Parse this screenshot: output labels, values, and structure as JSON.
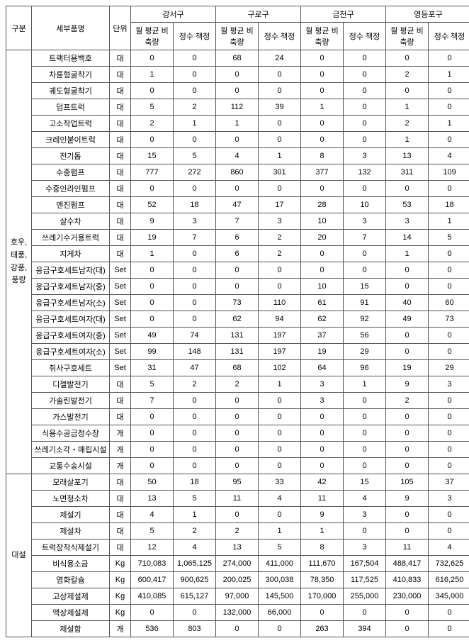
{
  "headers": {
    "category": "구분",
    "item": "세부품명",
    "unit": "단위",
    "districts": [
      "강서구",
      "구로구",
      "금천구",
      "영등포구"
    ],
    "sub": {
      "avg": "월 평균\n비축량",
      "book": "정수\n책정"
    }
  },
  "categories": [
    {
      "label": "호우,\n태풍,\n강풍,\n풍랑",
      "rows": [
        {
          "name": "트랙터용백호",
          "unit": "대",
          "v": [
            "0",
            "0",
            "68",
            "24",
            "0",
            "0",
            "0",
            "0"
          ]
        },
        {
          "name": "차륜형굴착기",
          "unit": "대",
          "v": [
            "1",
            "0",
            "0",
            "0",
            "0",
            "0",
            "2",
            "1"
          ]
        },
        {
          "name": "궤도형굴착기",
          "unit": "대",
          "v": [
            "0",
            "0",
            "0",
            "0",
            "0",
            "0",
            "0",
            "0"
          ]
        },
        {
          "name": "덤프트럭",
          "unit": "대",
          "v": [
            "5",
            "2",
            "112",
            "39",
            "1",
            "0",
            "1",
            "0"
          ]
        },
        {
          "name": "고소작업트럭",
          "unit": "대",
          "v": [
            "2",
            "1",
            "1",
            "0",
            "0",
            "0",
            "2",
            "1"
          ]
        },
        {
          "name": "크레인붙이트럭",
          "unit": "대",
          "v": [
            "0",
            "0",
            "0",
            "0",
            "0",
            "0",
            "1",
            "0"
          ]
        },
        {
          "name": "전기톱",
          "unit": "대",
          "v": [
            "15",
            "5",
            "4",
            "1",
            "8",
            "3",
            "13",
            "4"
          ]
        },
        {
          "name": "수중펌프",
          "unit": "대",
          "v": [
            "777",
            "272",
            "860",
            "301",
            "377",
            "132",
            "311",
            "109"
          ]
        },
        {
          "name": "수중인라인펌프",
          "unit": "대",
          "v": [
            "0",
            "0",
            "0",
            "0",
            "0",
            "0",
            "0",
            "0"
          ]
        },
        {
          "name": "엔진펌프",
          "unit": "대",
          "v": [
            "52",
            "18",
            "47",
            "17",
            "28",
            "10",
            "53",
            "18"
          ]
        },
        {
          "name": "살수차",
          "unit": "대",
          "v": [
            "9",
            "3",
            "7",
            "3",
            "10",
            "3",
            "3",
            "1"
          ]
        },
        {
          "name": "쓰레기수거용트럭",
          "unit": "대",
          "v": [
            "19",
            "7",
            "6",
            "2",
            "20",
            "7",
            "14",
            "5"
          ]
        },
        {
          "name": "지게차",
          "unit": "대",
          "v": [
            "1",
            "0",
            "6",
            "2",
            "0",
            "0",
            "1",
            "0"
          ]
        },
        {
          "name": "응급구호세트남자(대)",
          "unit": "Set",
          "v": [
            "0",
            "0",
            "0",
            "0",
            "0",
            "0",
            "0",
            "0"
          ]
        },
        {
          "name": "응급구호세트남자(중)",
          "unit": "Set",
          "v": [
            "0",
            "0",
            "0",
            "0",
            "10",
            "15",
            "0",
            "0"
          ]
        },
        {
          "name": "응급구호세트남자(소)",
          "unit": "Set",
          "v": [
            "0",
            "0",
            "73",
            "110",
            "61",
            "91",
            "40",
            "60"
          ]
        },
        {
          "name": "응급구호세트여자(대)",
          "unit": "Set",
          "v": [
            "0",
            "0",
            "62",
            "94",
            "62",
            "92",
            "49",
            "73"
          ]
        },
        {
          "name": "응급구호세트여자(중)",
          "unit": "Set",
          "v": [
            "49",
            "74",
            "131",
            "197",
            "37",
            "56",
            "0",
            "0"
          ]
        },
        {
          "name": "응급구호세트여자(소)",
          "unit": "Set",
          "v": [
            "99",
            "148",
            "131",
            "197",
            "19",
            "29",
            "0",
            "0"
          ]
        },
        {
          "name": "취사구호세트",
          "unit": "Set",
          "v": [
            "31",
            "47",
            "68",
            "102",
            "64",
            "96",
            "19",
            "29"
          ]
        },
        {
          "name": "디젤발전기",
          "unit": "대",
          "v": [
            "5",
            "2",
            "2",
            "1",
            "3",
            "1",
            "9",
            "3"
          ]
        },
        {
          "name": "가솔린발전기",
          "unit": "대",
          "v": [
            "7",
            "0",
            "0",
            "0",
            "3",
            "0",
            "2",
            "0"
          ]
        },
        {
          "name": "가스발전기",
          "unit": "대",
          "v": [
            "0",
            "0",
            "0",
            "0",
            "0",
            "0",
            "0",
            "0"
          ]
        },
        {
          "name": "식용수공급정수장",
          "unit": "개",
          "v": [
            "0",
            "0",
            "0",
            "0",
            "0",
            "0",
            "0",
            "0"
          ]
        },
        {
          "name": "쓰레기소각・매립시설",
          "unit": "개",
          "v": [
            "0",
            "0",
            "0",
            "0",
            "0",
            "0",
            "0",
            "0"
          ]
        },
        {
          "name": "교통수송시설",
          "unit": "개",
          "v": [
            "0",
            "0",
            "0",
            "0",
            "0",
            "0",
            "0",
            "0"
          ]
        }
      ]
    },
    {
      "label": "대설",
      "rows": [
        {
          "name": "모래살포기",
          "unit": "대",
          "v": [
            "50",
            "18",
            "95",
            "33",
            "42",
            "15",
            "105",
            "37"
          ]
        },
        {
          "name": "노면청소차",
          "unit": "대",
          "v": [
            "13",
            "5",
            "11",
            "4",
            "11",
            "4",
            "9",
            "3"
          ]
        },
        {
          "name": "제설기",
          "unit": "대",
          "v": [
            "4",
            "1",
            "0",
            "0",
            "9",
            "3",
            "0",
            "0"
          ]
        },
        {
          "name": "제설차",
          "unit": "대",
          "v": [
            "5",
            "2",
            "2",
            "1",
            "1",
            "0",
            "0",
            "0"
          ]
        },
        {
          "name": "트럭장착식제설기",
          "unit": "대",
          "v": [
            "12",
            "4",
            "13",
            "5",
            "8",
            "3",
            "11",
            "4"
          ]
        },
        {
          "name": "비식용소금",
          "unit": "Kg",
          "v": [
            "710,083",
            "1,065,125",
            "274,000",
            "411,000",
            "111,670",
            "167,504",
            "488,417",
            "732,625"
          ]
        },
        {
          "name": "염화칼슘",
          "unit": "Kg",
          "v": [
            "600,417",
            "900,625",
            "200,025",
            "300,038",
            "78,350",
            "117,525",
            "410,833",
            "616,250"
          ]
        },
        {
          "name": "고상제설제",
          "unit": "Kg",
          "v": [
            "410,085",
            "615,127",
            "97,000",
            "145,500",
            "170,000",
            "255,000",
            "230,000",
            "345,000"
          ]
        },
        {
          "name": "액상제설제",
          "unit": "Kg",
          "v": [
            "0",
            "0",
            "132,000",
            "66,000",
            "0",
            "0",
            "0",
            "0"
          ]
        },
        {
          "name": "제설함",
          "unit": "개",
          "v": [
            "536",
            "803",
            "0",
            "0",
            "263",
            "394",
            "0",
            "0"
          ]
        }
      ]
    }
  ]
}
